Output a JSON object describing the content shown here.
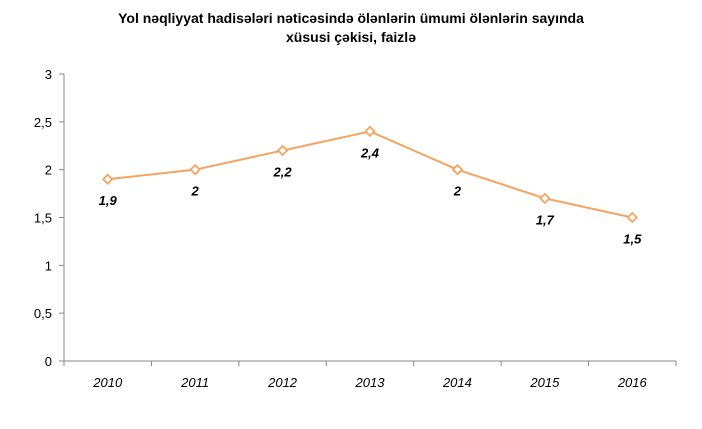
{
  "chart_data": {
    "type": "line",
    "title_line1": "Yol nəqliyyat hadisələri nəticəsində ölənlərin ümumi ölənlərin sayında",
    "title_line2": "xüsusi çəkisi, faizlə",
    "xlabel": "",
    "ylabel": "",
    "categories": [
      "2010",
      "2011",
      "2012",
      "2013",
      "2014",
      "2015",
      "2016"
    ],
    "series": [
      {
        "values": [
          1.9,
          2,
          2.2,
          2.4,
          2,
          1.7,
          1.5
        ],
        "labels": [
          "1,9",
          "2",
          "2,2",
          "2,4",
          "2",
          "1,7",
          "1,5"
        ],
        "color": "#F4A460"
      }
    ],
    "ylim": [
      0,
      3
    ],
    "yticks": [
      0,
      0.5,
      1,
      1.5,
      2,
      2.5,
      3
    ],
    "ytick_labels": [
      "0",
      "0,5",
      "1",
      "1,5",
      "2",
      "2,5",
      "3"
    ],
    "grid": false,
    "legend": "none",
    "marker": "diamond-open"
  }
}
